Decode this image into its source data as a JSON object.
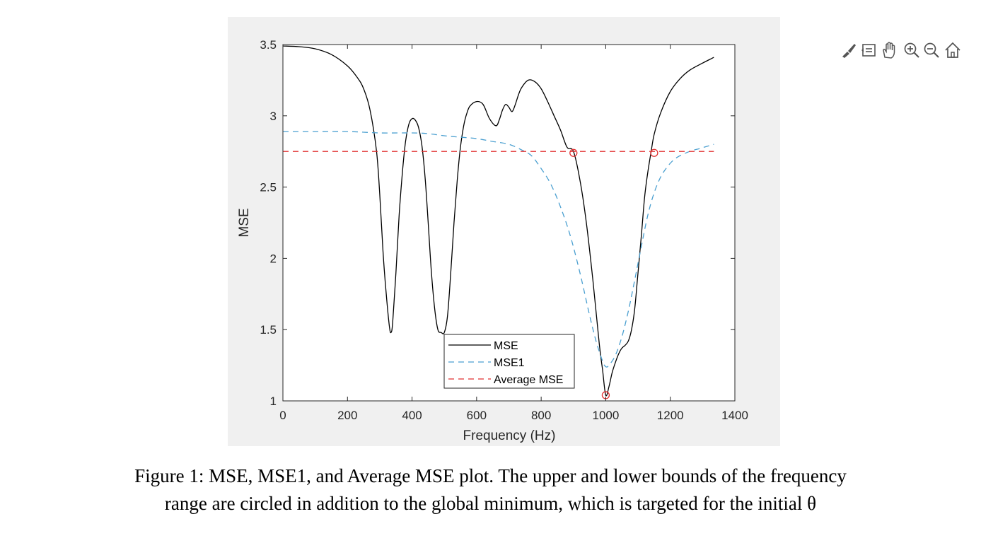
{
  "chart_data": {
    "type": "line",
    "title": "",
    "xlabel": "Frequency (Hz)",
    "ylabel": "MSE",
    "xlim": [
      0,
      1400
    ],
    "ylim": [
      1,
      3.5
    ],
    "xticks": [
      0,
      200,
      400,
      600,
      800,
      1000,
      1200,
      1400
    ],
    "yticks": [
      1,
      1.5,
      2,
      2.5,
      3,
      3.5
    ],
    "xtick_labels": [
      "0",
      "200",
      "400",
      "600",
      "800",
      "1000",
      "1200",
      "1400"
    ],
    "ytick_labels": [
      "1",
      "1.5",
      "2",
      "2.5",
      "3",
      "3.5"
    ],
    "grid": false,
    "legend_position": "bottom-center",
    "series": [
      {
        "name": "MSE",
        "style": "solid",
        "color": "#000000",
        "x": [
          0,
          50,
          100,
          150,
          200,
          230,
          250,
          270,
          290,
          300,
          310,
          320,
          330,
          335,
          340,
          350,
          360,
          370,
          380,
          390,
          400,
          410,
          420,
          430,
          440,
          450,
          460,
          470,
          480,
          490,
          500,
          510,
          520,
          530,
          540,
          550,
          560,
          570,
          580,
          600,
          620,
          640,
          660,
          670,
          680,
          690,
          700,
          710,
          720,
          730,
          740,
          760,
          780,
          800,
          820,
          840,
          860,
          880,
          900,
          920,
          940,
          960,
          980,
          990,
          1000,
          1010,
          1020,
          1030,
          1040,
          1050,
          1060,
          1070,
          1080,
          1090,
          1100,
          1110,
          1120,
          1130,
          1140,
          1150,
          1170,
          1200,
          1230,
          1260,
          1300,
          1335
        ],
        "values": [
          3.49,
          3.485,
          3.47,
          3.43,
          3.35,
          3.27,
          3.19,
          3.04,
          2.75,
          2.45,
          2.05,
          1.75,
          1.52,
          1.48,
          1.55,
          1.9,
          2.3,
          2.6,
          2.82,
          2.94,
          2.98,
          2.97,
          2.92,
          2.8,
          2.58,
          2.25,
          1.9,
          1.65,
          1.5,
          1.48,
          1.48,
          1.6,
          1.9,
          2.25,
          2.55,
          2.78,
          2.93,
          3.02,
          3.07,
          3.1,
          3.08,
          2.98,
          2.93,
          2.97,
          3.04,
          3.08,
          3.06,
          3.03,
          3.08,
          3.15,
          3.2,
          3.25,
          3.24,
          3.19,
          3.1,
          3.0,
          2.9,
          2.78,
          2.75,
          2.55,
          2.25,
          1.85,
          1.4,
          1.22,
          1.04,
          1.1,
          1.2,
          1.27,
          1.33,
          1.37,
          1.39,
          1.42,
          1.5,
          1.65,
          1.9,
          2.15,
          2.42,
          2.6,
          2.74,
          2.87,
          3.02,
          3.17,
          3.26,
          3.32,
          3.37,
          3.41
        ]
      },
      {
        "name": "MSE1",
        "style": "dashed",
        "color": "#4a9fd0",
        "x": [
          0,
          100,
          200,
          300,
          400,
          450,
          500,
          550,
          600,
          650,
          700,
          740,
          770,
          800,
          830,
          860,
          890,
          920,
          950,
          970,
          990,
          1000,
          1010,
          1030,
          1050,
          1070,
          1090,
          1110,
          1130,
          1150,
          1170,
          1190,
          1210,
          1230,
          1260,
          1290,
          1320,
          1335
        ],
        "values": [
          2.89,
          2.89,
          2.89,
          2.88,
          2.88,
          2.875,
          2.86,
          2.85,
          2.84,
          2.82,
          2.8,
          2.76,
          2.72,
          2.63,
          2.52,
          2.36,
          2.16,
          1.9,
          1.6,
          1.42,
          1.28,
          1.24,
          1.25,
          1.32,
          1.45,
          1.63,
          1.85,
          2.08,
          2.3,
          2.46,
          2.57,
          2.64,
          2.69,
          2.72,
          2.75,
          2.77,
          2.79,
          2.8
        ]
      },
      {
        "name": "Average MSE",
        "style": "dashed",
        "color": "#e03030",
        "x": [
          0,
          1335
        ],
        "values": [
          2.75,
          2.75
        ]
      }
    ],
    "markers": [
      {
        "x": 900,
        "y": 2.74,
        "label": "lower bound"
      },
      {
        "x": 1150,
        "y": 2.74,
        "label": "upper bound"
      },
      {
        "x": 1000,
        "y": 1.04,
        "label": "global minimum"
      }
    ],
    "marker_color": "#e03030"
  },
  "caption": {
    "line1": "Figure 1: MSE, MSE1, and Average MSE plot. The upper and lower bounds of the frequency",
    "line2": "range are circled in addition to the global minimum, which is targeted for the initial θ"
  },
  "toolbar": {
    "icons": [
      "brush-icon",
      "data-tips-icon",
      "pan-icon",
      "zoom-in-icon",
      "zoom-out-icon",
      "home-icon"
    ]
  }
}
